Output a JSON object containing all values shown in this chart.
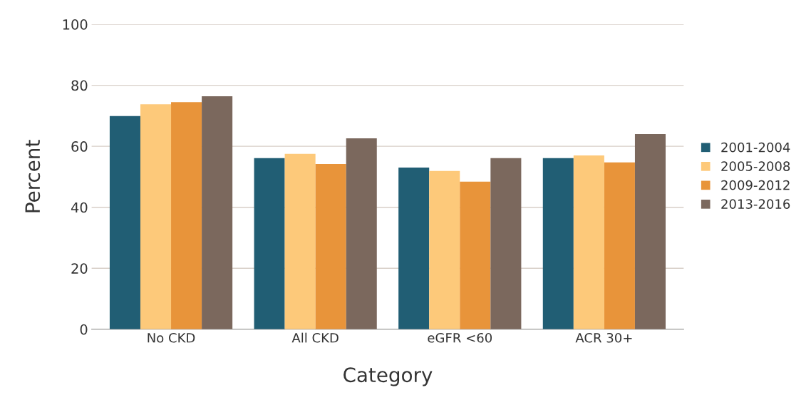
{
  "chart_data": {
    "type": "bar",
    "xlabel": "Category",
    "ylabel": "Percent",
    "categories": [
      "No CKD",
      "All CKD",
      "eGFR <60",
      "ACR 30+"
    ],
    "series": [
      {
        "name": "2001-2004",
        "color": "#215e74",
        "values": [
          69.9,
          56.1,
          53.0,
          56.1
        ]
      },
      {
        "name": "2005-2008",
        "color": "#fdc97a",
        "values": [
          73.8,
          57.5,
          51.9,
          57.0
        ]
      },
      {
        "name": "2009-2012",
        "color": "#e8943a",
        "values": [
          74.5,
          54.2,
          48.4,
          54.7
        ]
      },
      {
        "name": "2013-2016",
        "color": "#7b685d",
        "values": [
          76.4,
          62.6,
          56.1,
          64.0
        ]
      }
    ],
    "ylim": [
      0,
      100
    ],
    "yticks": [
      0,
      20,
      40,
      60,
      80,
      100
    ],
    "grid": "y",
    "legend": "right"
  }
}
